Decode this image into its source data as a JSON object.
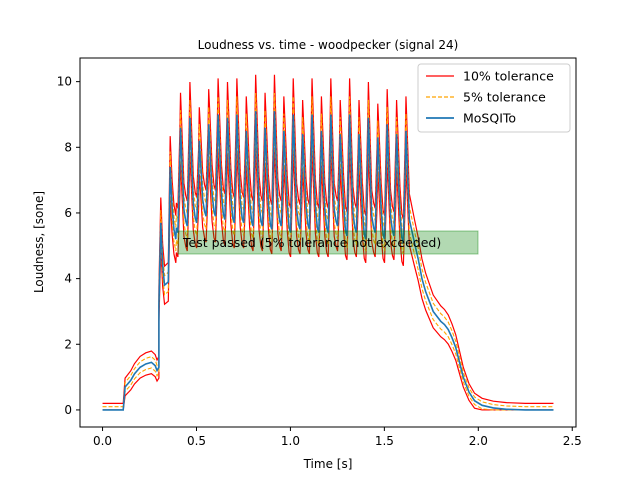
{
  "chart_data": {
    "type": "line",
    "title": "Loudness vs. time - woodpecker (signal 24)",
    "xlabel": "Time [s]",
    "ylabel": "Loudness, [sone]",
    "xlim": [
      -0.12,
      2.52
    ],
    "ylim": [
      -0.52,
      10.72
    ],
    "xticks": [
      0.0,
      0.5,
      1.0,
      1.5,
      2.0,
      2.5
    ],
    "xtick_labels": [
      "0.0",
      "0.5",
      "1.0",
      "1.5",
      "2.0",
      "2.5"
    ],
    "yticks": [
      0,
      2,
      4,
      6,
      8,
      10
    ],
    "ytick_labels": [
      "0",
      "2",
      "4",
      "6",
      "8",
      "10"
    ],
    "grid": false,
    "legend_position": "top-right",
    "annotation": "Test passed (5% tolerance not exceeded)",
    "series": [
      {
        "name": "10% tolerance",
        "color": "#ff0000",
        "style": "solid",
        "role": "upper_lower",
        "tolerance": 0.1
      },
      {
        "name": "5% tolerance",
        "color": "#ffa500",
        "style": "dashed",
        "role": "upper_lower",
        "tolerance": 0.05
      },
      {
        "name": "MoSQITo",
        "color": "#1f77b4",
        "style": "solid",
        "role": "main"
      }
    ],
    "mosqito_data": {
      "onset": [
        [
          0.0,
          0.0
        ],
        [
          0.11,
          0.0
        ],
        [
          0.12,
          0.7
        ],
        [
          0.15,
          0.9
        ],
        [
          0.17,
          1.1
        ],
        [
          0.2,
          1.3
        ],
        [
          0.23,
          1.4
        ],
        [
          0.26,
          1.45
        ],
        [
          0.28,
          1.35
        ],
        [
          0.29,
          1.2
        ],
        [
          0.3,
          1.3
        ],
        [
          0.3,
          3.2
        ],
        [
          0.31,
          5.7
        ],
        [
          0.32,
          4.4
        ],
        [
          0.33,
          3.8
        ],
        [
          0.35,
          3.9
        ],
        [
          0.36,
          7.4
        ],
        [
          0.37,
          6.2
        ],
        [
          0.38,
          5.5
        ],
        [
          0.39,
          5.2
        ]
      ],
      "pulse_times": [
        0.36,
        0.415,
        0.465,
        0.515,
        0.565,
        0.615,
        0.665,
        0.715,
        0.765,
        0.815,
        0.865,
        0.915,
        0.965,
        1.015,
        1.065,
        1.115,
        1.165,
        1.215,
        1.265,
        1.315,
        1.365,
        1.415,
        1.465,
        1.515,
        1.565,
        1.615
      ],
      "pulse_peaks": [
        7.4,
        8.6,
        8.9,
        8.2,
        8.7,
        9.0,
        8.9,
        9.0,
        8.5,
        9.1,
        8.6,
        9.1,
        8.5,
        9.0,
        8.4,
        9.0,
        8.5,
        9.0,
        8.4,
        9.0,
        8.4,
        8.9,
        8.3,
        8.7,
        8.4,
        8.5
      ],
      "pulse_troughs": [
        5.2,
        5.4,
        5.6,
        5.7,
        5.9,
        5.9,
        5.8,
        5.7,
        5.7,
        5.6,
        5.6,
        5.5,
        5.6,
        5.4,
        5.5,
        5.5,
        5.4,
        5.4,
        5.6,
        5.3,
        5.4,
        5.2,
        5.4,
        5.2,
        5.3,
        5.1
      ],
      "decay": [
        [
          1.66,
          5.1
        ],
        [
          1.68,
          4.6
        ],
        [
          1.7,
          4.0
        ],
        [
          1.72,
          3.6
        ],
        [
          1.74,
          3.3
        ],
        [
          1.76,
          3.0
        ],
        [
          1.78,
          2.85
        ],
        [
          1.8,
          2.7
        ],
        [
          1.82,
          2.6
        ],
        [
          1.84,
          2.45
        ],
        [
          1.86,
          2.2
        ],
        [
          1.88,
          1.9
        ],
        [
          1.9,
          1.45
        ],
        [
          1.92,
          1.0
        ],
        [
          1.95,
          0.55
        ],
        [
          1.98,
          0.28
        ],
        [
          2.02,
          0.14
        ],
        [
          2.08,
          0.06
        ],
        [
          2.15,
          0.02
        ],
        [
          2.25,
          0.0
        ],
        [
          2.4,
          0.0
        ]
      ]
    }
  }
}
